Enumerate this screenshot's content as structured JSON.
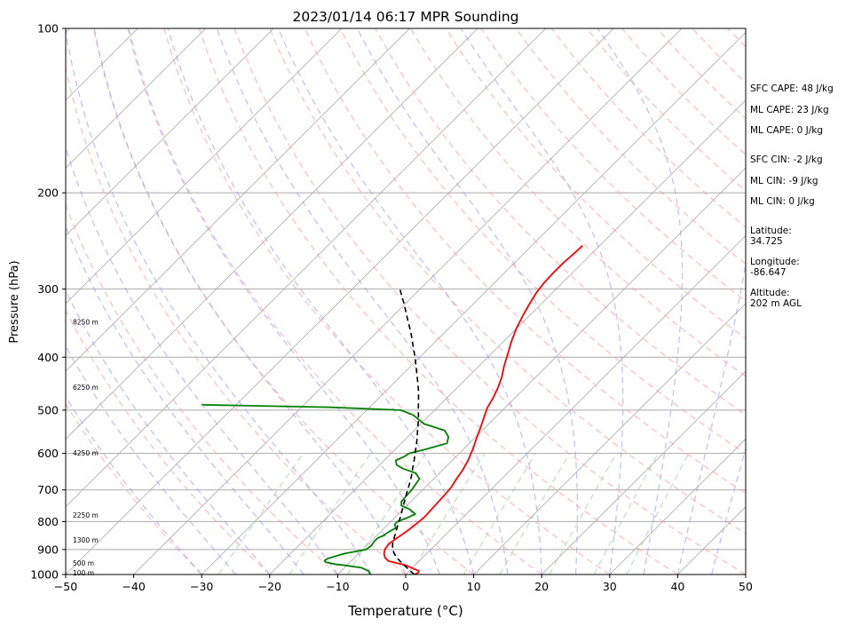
{
  "chart_data": {
    "type": "line",
    "title": "2023/01/14 06:17 MPR Sounding",
    "xlabel": "Temperature (°C)",
    "ylabel": "Pressure (hPa)",
    "xlim": [
      -50,
      50
    ],
    "ylim": [
      1000,
      100
    ],
    "y_scale": "log",
    "skew_t": true,
    "x_ticks": [
      "−50",
      "−40",
      "−30",
      "−20",
      "−10",
      "0",
      "10",
      "20",
      "30",
      "40",
      "50"
    ],
    "y_ticks": [
      "100",
      "200",
      "300",
      "400",
      "500",
      "600",
      "700",
      "800",
      "900",
      "1000"
    ],
    "height_labels": [
      {
        "p": 995,
        "label": "100 m"
      },
      {
        "p": 955,
        "label": "500 m"
      },
      {
        "p": 865,
        "label": "1300 m"
      },
      {
        "p": 780,
        "label": "2250 m"
      },
      {
        "p": 600,
        "label": "4250 m"
      },
      {
        "p": 455,
        "label": "6250 m"
      },
      {
        "p": 345,
        "label": "8250 m"
      }
    ],
    "series": [
      {
        "color": "#ff0000",
        "points": [
          [
            1000,
            1.3
          ],
          [
            993,
            1.6
          ],
          [
            985,
            1.4
          ],
          [
            975,
            0.2
          ],
          [
            962,
            -1.3
          ],
          [
            952,
            -3.2
          ],
          [
            945,
            -4.5
          ],
          [
            932,
            -5.5
          ],
          [
            915,
            -6.3
          ],
          [
            898,
            -6.8
          ],
          [
            880,
            -7.0
          ],
          [
            865,
            -6.8
          ],
          [
            845,
            -6.4
          ],
          [
            825,
            -6.1
          ],
          [
            805,
            -5.9
          ],
          [
            785,
            -5.7
          ],
          [
            765,
            -5.8
          ],
          [
            742,
            -5.9
          ],
          [
            715,
            -6.0
          ],
          [
            690,
            -6.2
          ],
          [
            670,
            -6.6
          ],
          [
            645,
            -7.0
          ],
          [
            620,
            -7.6
          ],
          [
            590,
            -8.6
          ],
          [
            565,
            -9.6
          ],
          [
            540,
            -10.6
          ],
          [
            515,
            -11.7
          ],
          [
            495,
            -12.6
          ],
          [
            475,
            -13.2
          ],
          [
            455,
            -14.0
          ],
          [
            435,
            -15.0
          ],
          [
            415,
            -16.3
          ],
          [
            395,
            -17.5
          ],
          [
            375,
            -18.8
          ],
          [
            355,
            -20.0
          ],
          [
            335,
            -21.0
          ],
          [
            318,
            -21.8
          ],
          [
            304,
            -22.4
          ],
          [
            292,
            -22.7
          ],
          [
            280,
            -22.8
          ],
          [
            268,
            -22.8
          ],
          [
            258,
            -22.6
          ],
          [
            250,
            -22.5
          ]
        ]
      },
      {
        "color": "#008000",
        "points": [
          [
            1000,
            -5.2
          ],
          [
            985,
            -6.0
          ],
          [
            972,
            -7.5
          ],
          [
            962,
            -10.3
          ],
          [
            957,
            -12.0
          ],
          [
            950,
            -13.5
          ],
          [
            943,
            -14.0
          ],
          [
            935,
            -13.8
          ],
          [
            925,
            -13.0
          ],
          [
            915,
            -12.0
          ],
          [
            900,
            -9.5
          ],
          [
            885,
            -9.3
          ],
          [
            870,
            -9.5
          ],
          [
            858,
            -9.5
          ],
          [
            848,
            -9.0
          ],
          [
            836,
            -8.8
          ],
          [
            822,
            -8.3
          ],
          [
            810,
            -9.0
          ],
          [
            800,
            -9.0
          ],
          [
            788,
            -8.2
          ],
          [
            775,
            -7.5
          ],
          [
            760,
            -9.0
          ],
          [
            748,
            -10.8
          ],
          [
            735,
            -11.4
          ],
          [
            720,
            -11.5
          ],
          [
            700,
            -11.6
          ],
          [
            680,
            -11.9
          ],
          [
            668,
            -12.1
          ],
          [
            652,
            -13.5
          ],
          [
            640,
            -16.0
          ],
          [
            630,
            -17.5
          ],
          [
            618,
            -18.3
          ],
          [
            608,
            -17.6
          ],
          [
            600,
            -17.4
          ],
          [
            590,
            -15.6
          ],
          [
            575,
            -13.3
          ],
          [
            560,
            -14.0
          ],
          [
            545,
            -15.5
          ],
          [
            530,
            -19.5
          ],
          [
            520,
            -21.0
          ],
          [
            510,
            -22.5
          ],
          [
            500,
            -25.0
          ],
          [
            494,
            -36.0
          ],
          [
            489,
            -55.0
          ]
        ]
      },
      {
        "color": "#000000",
        "dashed": true,
        "points": [
          [
            1000,
            1.3
          ],
          [
            990,
            0.5
          ],
          [
            975,
            -0.6
          ],
          [
            960,
            -1.7
          ],
          [
            945,
            -2.8
          ],
          [
            930,
            -3.9
          ],
          [
            915,
            -4.8
          ],
          [
            900,
            -5.6
          ],
          [
            880,
            -6.4
          ],
          [
            860,
            -7.0
          ],
          [
            840,
            -7.6
          ],
          [
            820,
            -8.2
          ],
          [
            800,
            -8.8
          ],
          [
            780,
            -9.4
          ],
          [
            760,
            -10.1
          ],
          [
            740,
            -10.8
          ],
          [
            720,
            -11.5
          ],
          [
            700,
            -12.2
          ],
          [
            680,
            -12.9
          ],
          [
            660,
            -13.7
          ],
          [
            640,
            -14.6
          ],
          [
            620,
            -15.5
          ],
          [
            600,
            -16.5
          ],
          [
            580,
            -17.5
          ],
          [
            560,
            -18.6
          ],
          [
            540,
            -19.8
          ],
          [
            520,
            -21.0
          ],
          [
            500,
            -22.4
          ],
          [
            480,
            -23.8
          ],
          [
            460,
            -25.3
          ],
          [
            440,
            -27.0
          ],
          [
            420,
            -28.8
          ],
          [
            400,
            -30.7
          ],
          [
            380,
            -32.8
          ],
          [
            360,
            -35.0
          ],
          [
            340,
            -37.5
          ],
          [
            320,
            -40.1
          ],
          [
            300,
            -43.0
          ]
        ]
      }
    ],
    "grid": true
  },
  "panel": {
    "sfc_cape": "SFC CAPE: 48 J/kg",
    "ml_cape_1": "ML CAPE: 23 J/kg",
    "ml_cape_2": "ML CAPE: 0 J/kg",
    "sfc_cin": "SFC CIN: -2 J/kg",
    "ml_cin_1": "ML CIN: -9 J/kg",
    "ml_cin_2": "ML CIN: 0 J/kg",
    "latitude_label": "Latitude:",
    "latitude_value": "34.725",
    "longitude_label": "Longitude:",
    "longitude_value": "-86.647",
    "altitude_label": "Altitude:",
    "altitude_value": "202 m AGL"
  },
  "colors": {
    "isotherm": "#a9a9a9",
    "dry_adiabat": "#ff9999",
    "moist_adiabat": "#9999ff",
    "mixing_ratio": "#88cc88",
    "temperature": "#ff0000",
    "dewpoint": "#008000",
    "parcel": "#000000"
  }
}
